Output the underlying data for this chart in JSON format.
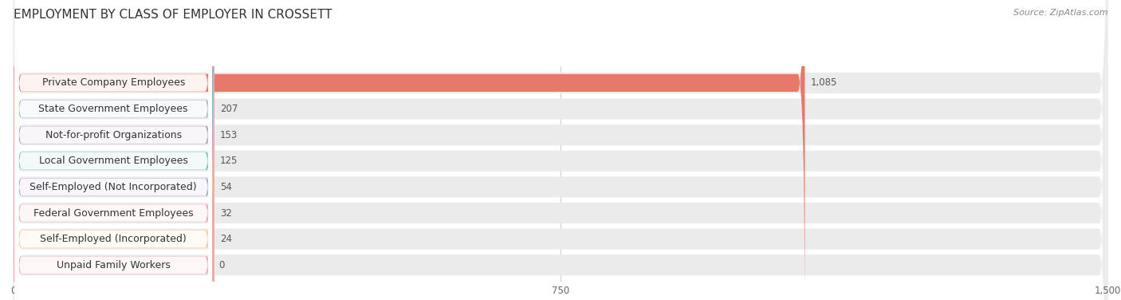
{
  "title": "EMPLOYMENT BY CLASS OF EMPLOYER IN CROSSETT",
  "source": "Source: ZipAtlas.com",
  "categories": [
    "Private Company Employees",
    "State Government Employees",
    "Not-for-profit Organizations",
    "Local Government Employees",
    "Self-Employed (Not Incorporated)",
    "Federal Government Employees",
    "Self-Employed (Incorporated)",
    "Unpaid Family Workers"
  ],
  "values": [
    1085,
    207,
    153,
    125,
    54,
    32,
    24,
    0
  ],
  "value_labels": [
    "1,085",
    "207",
    "153",
    "125",
    "54",
    "32",
    "24",
    "0"
  ],
  "bar_colors": [
    "#e8796a",
    "#a8b8d8",
    "#b89ac8",
    "#72c8bc",
    "#a8a8d8",
    "#f0a0b0",
    "#f8c898",
    "#f0a8a8"
  ],
  "bar_bg_color": "#ebebeb",
  "xlim": [
    0,
    1500
  ],
  "xticks": [
    0,
    750,
    1500
  ],
  "xtick_labels": [
    "0",
    "750",
    "1,500"
  ],
  "background_color": "#ffffff",
  "title_fontsize": 11,
  "label_fontsize": 9,
  "value_fontsize": 8.5,
  "source_fontsize": 8
}
